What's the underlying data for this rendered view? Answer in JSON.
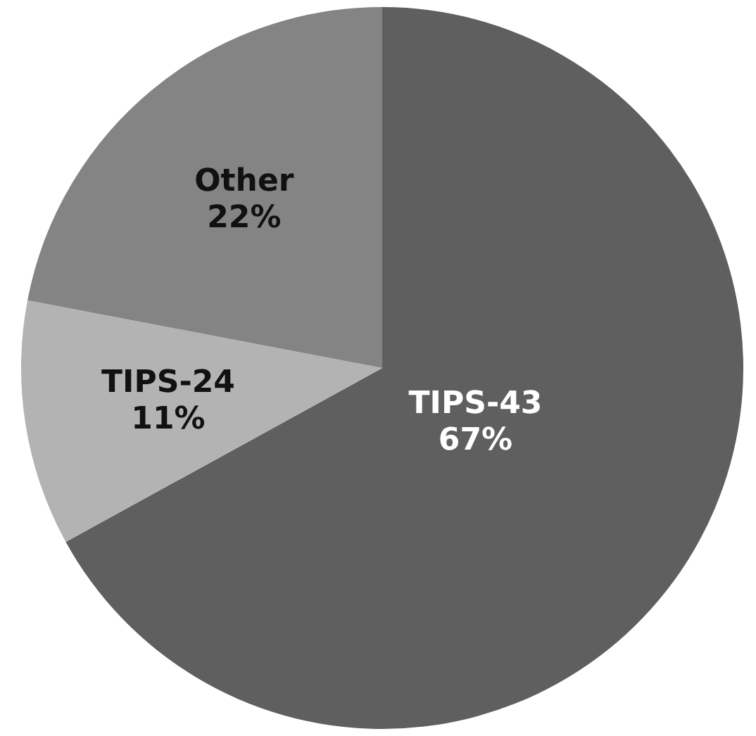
{
  "chart_data": {
    "type": "pie",
    "categories": [
      "TIPS-43",
      "TIPS-24",
      "Other"
    ],
    "values": [
      67,
      11,
      22
    ],
    "colors": [
      "#5f5f5f",
      "#b3b3b3",
      "#848484"
    ],
    "value_labels": [
      "67%",
      "11%",
      "22%"
    ]
  }
}
